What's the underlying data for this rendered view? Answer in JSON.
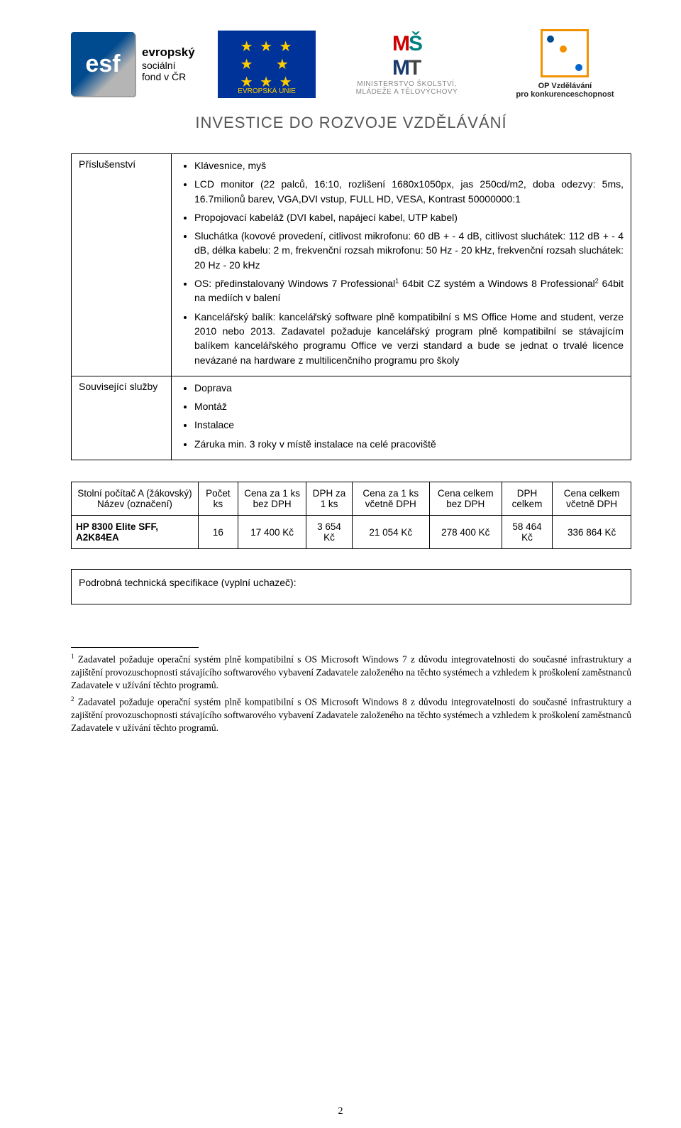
{
  "header": {
    "esf_big": "esf",
    "esf_line1": "evropský",
    "esf_line2": "sociální",
    "esf_line3": "fond v ČR",
    "eu_label": "EVROPSKÁ UNIE",
    "msmt_top_m": "M",
    "msmt_top_s": "Š",
    "msmt_top_m2": "M",
    "msmt_top_t": "T",
    "msmt_sub1": "MINISTERSTVO ŠKOLSTVÍ,",
    "msmt_sub2": "MLÁDEŽE A TĚLOVÝCHOVY",
    "op_line1": "OP Vzdělávání",
    "op_line2": "pro konkurenceschopnost",
    "investice": "INVESTICE DO ROZVOJE VZDĚLÁVÁNÍ"
  },
  "spec": {
    "row1_label": "Příslušenství",
    "row1_b1": "Klávesnice, myš",
    "row1_b2": "LCD monitor (22 palců, 16:10, rozlišení 1680x1050px, jas 250cd/m2, doba odezvy: 5ms, 16.7milionů barev, VGA,DVI vstup, FULL HD, VESA, Kontrast 50000000:1",
    "row1_b3": "Propojovací kabeláž (DVI kabel, napájecí kabel, UTP kabel)",
    "row1_b4": "Sluchátka (kovové provedení, citlivost mikrofonu: 60 dB + - 4 dB, citlivost sluchátek: 112 dB + - 4 dB, délka kabelu: 2 m, frekvenční rozsah mikrofonu: 50 Hz - 20 kHz, frekvenční rozsah sluchátek: 20 Hz - 20 kHz",
    "row1_b5_pre": "OS: předinstalovaný Windows 7 Professional",
    "row1_b5_mid": " 64bit CZ systém a Windows 8 Professional",
    "row1_b5_post": " 64bit na mediích v balení",
    "row1_b6": "Kancelářský balík: kancelářský software plně kompatibilní s MS Office Home and student, verze 2010 nebo 2013. Zadavatel požaduje kancelářský program plně kompatibilní se stávajícím balíkem kancelářského programu Office ve verzi standard a bude se jednat o trvalé licence nevázané na hardware z multilicenčního programu pro školy",
    "row2_label": "Související služby",
    "row2_b1": "Doprava",
    "row2_b2": "Montáž",
    "row2_b3": "Instalace",
    "row2_b4": "Záruka min. 3 roky v místě instalace na celé pracoviště"
  },
  "price": {
    "h1": "Stolní počítač A (žákovský) Název (označení)",
    "h2": "Počet ks",
    "h3": "Cena za 1 ks bez DPH",
    "h4": "DPH za 1 ks",
    "h5": "Cena za 1 ks včetně DPH",
    "h6": "Cena celkem bez DPH",
    "h7": "DPH celkem",
    "h8": "Cena celkem včetně DPH",
    "r1c1": "HP 8300 Elite SFF, A2K84EA",
    "r1c2": "16",
    "r1c3": "17 400 Kč",
    "r1c4": "3 654 Kč",
    "r1c5": "21 054 Kč",
    "r1c6": "278 400 Kč",
    "r1c7": "58 464 Kč",
    "r1c8": "336 864 Kč"
  },
  "detail_label": "Podrobná technická specifikace (vyplní uchazeč):",
  "footnotes": {
    "fn1": "Zadavatel požaduje operační systém plně kompatibilní s OS Microsoft Windows 7 z důvodu integrovatelnosti do současné infrastruktury a zajištění provozuschopnosti stávajícího softwarového vybavení Zadavatele založeného na těchto systémech a vzhledem k proškolení zaměstnanců Zadavatele v užívání těchto programů.",
    "fn2": "Zadavatel požaduje operační systém plně kompatibilní s OS Microsoft Windows 8 z důvodu integrovatelnosti do současné infrastruktury a zajištění provozuschopnosti stávajícího softwarového vybavení Zadavatele založeného na těchto systémech a vzhledem k proškolení zaměstnanců Zadavatele v užívání těchto programů."
  },
  "pagenum": "2"
}
